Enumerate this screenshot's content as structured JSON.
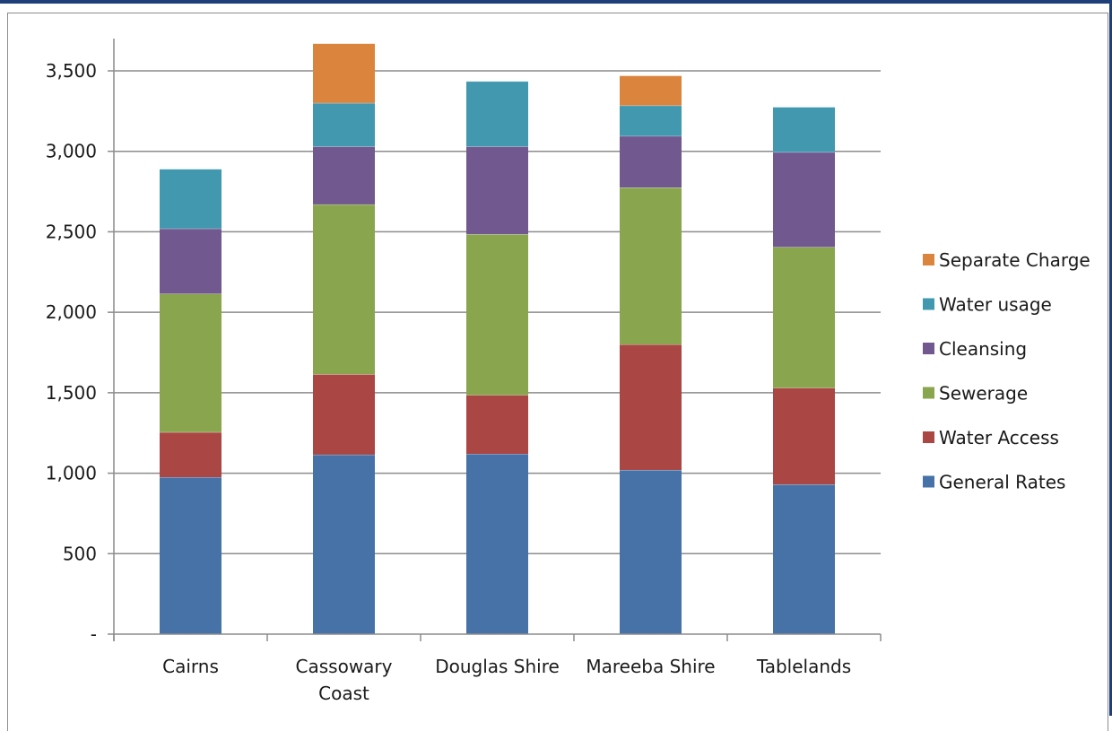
{
  "chart_data": {
    "type": "bar",
    "stacked": true,
    "categories": [
      [
        "Cairns"
      ],
      [
        "Cassowary",
        "Coast"
      ],
      [
        "Douglas Shire"
      ],
      [
        "Mareeba Shire"
      ],
      [
        "Tablelands"
      ]
    ],
    "series": [
      {
        "name": "General Rates",
        "color": "#4672a8",
        "values": [
          975,
          1115,
          1120,
          1020,
          930
        ]
      },
      {
        "name": "Water Access",
        "color": "#aa4643",
        "values": [
          280,
          500,
          365,
          780,
          600
        ]
      },
      {
        "name": "Sewerage",
        "color": "#89a54e",
        "values": [
          860,
          1055,
          1000,
          975,
          875
        ]
      },
      {
        "name": "Cleansing",
        "color": "#71588f",
        "values": [
          405,
          360,
          545,
          320,
          590
        ]
      },
      {
        "name": "Water usage",
        "color": "#4198af",
        "values": [
          370,
          270,
          405,
          190,
          280
        ]
      },
      {
        "name": "Separate Charge",
        "color": "#db843d",
        "values": [
          0,
          370,
          0,
          185,
          0
        ]
      }
    ],
    "ylim": [
      0,
      3500
    ],
    "yticks": [
      {
        "value": 0,
        "label": "-"
      },
      {
        "value": 500,
        "label": "500"
      },
      {
        "value": 1000,
        "label": "1,000"
      },
      {
        "value": 1500,
        "label": "1,500"
      },
      {
        "value": 2000,
        "label": "2,000"
      },
      {
        "value": 2500,
        "label": "2,500"
      },
      {
        "value": 3000,
        "label": "3,000"
      },
      {
        "value": 3500,
        "label": "3,500"
      }
    ],
    "grid": true,
    "legend_position": "right",
    "legend_order": [
      "Separate Charge",
      "Water usage",
      "Cleansing",
      "Sewerage",
      "Water Access",
      "General Rates"
    ]
  }
}
